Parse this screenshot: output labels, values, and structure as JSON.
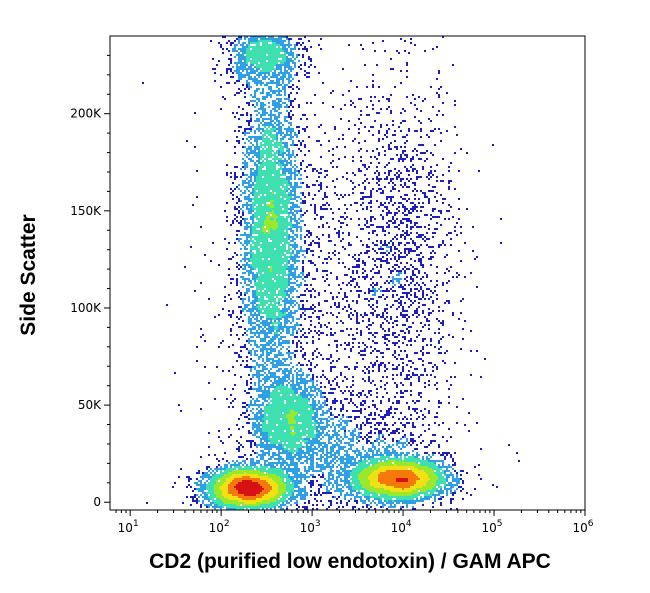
{
  "chart_data": {
    "type": "scatter",
    "title": "",
    "xlabel": "CD2 (purified low endotoxin) / GAM APC",
    "ylabel": "Side Scatter",
    "x_scale": "log",
    "xlim": [
      6,
      1000000
    ],
    "ylim": [
      -4000,
      240000
    ],
    "x_ticks": [
      {
        "base": "10",
        "exp": "1",
        "value": 10
      },
      {
        "base": "10",
        "exp": "2",
        "value": 100
      },
      {
        "base": "10",
        "exp": "3",
        "value": 1000
      },
      {
        "base": "10",
        "exp": "4",
        "value": 10000
      },
      {
        "base": "10",
        "exp": "5",
        "value": 100000
      },
      {
        "base": "10",
        "exp": "6",
        "value": 1000000
      }
    ],
    "y_ticks": [
      {
        "label": "0",
        "value": 0
      },
      {
        "label": "50K",
        "value": 50000
      },
      {
        "label": "100K",
        "value": 100000
      },
      {
        "label": "150K",
        "value": 150000
      },
      {
        "label": "200K",
        "value": 200000
      }
    ],
    "colormap": [
      "#1e1ebe",
      "#2ea0e6",
      "#3ee0b0",
      "#9ae82e",
      "#f0e014",
      "#f5780a",
      "#d71212"
    ],
    "populations": [
      {
        "name": "",
        "x_center": 200,
        "y_center": 7000,
        "x_spread_decades": 0.22,
        "y_spread": 5000,
        "weight": 0.22
      },
      {
        "name": "",
        "x_center": 350,
        "y_center": 140000,
        "x_spread_decades": 0.16,
        "y_spread": 38000,
        "weight": 0.26
      },
      {
        "name": "",
        "x_center": 550,
        "y_center": 42000,
        "x_spread_decades": 0.2,
        "y_spread": 12000,
        "weight": 0.1
      },
      {
        "name": "",
        "x_center": 9000,
        "y_center": 12000,
        "x_spread_decades": 0.25,
        "y_spread": 5000,
        "weight": 0.2
      },
      {
        "name": "",
        "x_center": 10000,
        "y_center": 130000,
        "x_spread_decades": 0.3,
        "y_spread": 45000,
        "weight": 0.05
      },
      {
        "name": "",
        "x_center": 1500,
        "y_center": 90000,
        "x_spread_decades": 0.6,
        "y_spread": 60000,
        "weight": 0.07
      },
      {
        "name": "",
        "x_center": 300,
        "y_center": 230000,
        "x_spread_decades": 0.2,
        "y_spread": 8000,
        "weight": 0.05
      },
      {
        "name": "",
        "x_center": 3000,
        "y_center": 20000,
        "x_spread_decades": 0.5,
        "y_spread": 15000,
        "weight": 0.05
      }
    ]
  }
}
